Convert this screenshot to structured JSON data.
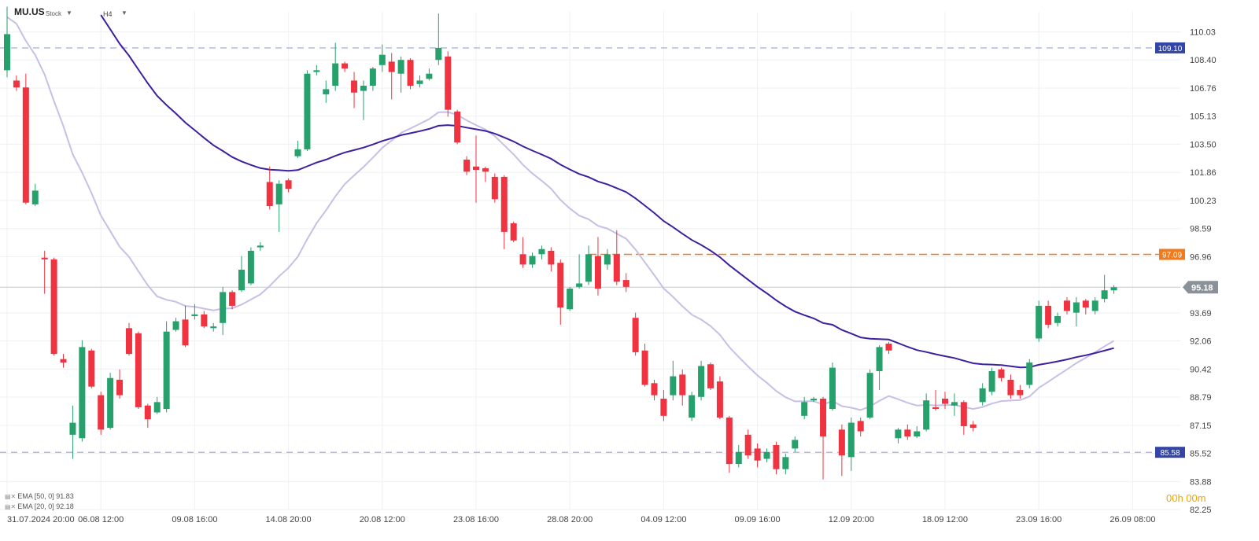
{
  "header": {
    "symbol": "MU.US",
    "type": "Stock",
    "timeframe": "H4"
  },
  "timer": "00h 00m",
  "legend": [
    {
      "label": "EMA  [50, 0]  91.83",
      "color": "#3d1fa0"
    },
    {
      "label": "EMA  [20, 0]  92.18",
      "color": "#c7bfe6"
    }
  ],
  "colors": {
    "up": "#26a16c",
    "down": "#ef3340",
    "ema50": "#3d1fa0",
    "ema20": "#c7bfe6",
    "hline": "#9aa3d6",
    "orange": "#f07a1c",
    "current": "#c8ccd0"
  },
  "chart_data": {
    "type": "candlestick",
    "ylim": [
      82.25,
      111.2
    ],
    "y_ticks": [
      110.03,
      108.4,
      106.76,
      105.13,
      103.5,
      101.86,
      100.23,
      98.59,
      96.96,
      95.18,
      93.69,
      92.06,
      90.42,
      88.79,
      87.15,
      85.52,
      83.88,
      82.25
    ],
    "x_ticks": [
      {
        "label": "31.07.2024  20:00",
        "i": 0
      },
      {
        "label": "06.08  12:00",
        "i": 10
      },
      {
        "label": "09.08  16:00",
        "i": 20
      },
      {
        "label": "14.08  20:00",
        "i": 30
      },
      {
        "label": "20.08  12:00",
        "i": 40
      },
      {
        "label": "23.08  16:00",
        "i": 50
      },
      {
        "label": "28.08  20:00",
        "i": 60
      },
      {
        "label": "04.09  12:00",
        "i": 70
      },
      {
        "label": "09.09  16:00",
        "i": 80
      },
      {
        "label": "12.09  20:00",
        "i": 90
      },
      {
        "label": "18.09  12:00",
        "i": 100
      },
      {
        "label": "23.09  16:00",
        "i": 110
      },
      {
        "label": "26.09  08:00",
        "i": 120
      }
    ],
    "levels": [
      {
        "value": 109.1,
        "label": "109.10",
        "kind": "support-resistance"
      },
      {
        "value": 85.58,
        "label": "85.58",
        "kind": "support-resistance"
      },
      {
        "value": 97.09,
        "label": "97.09",
        "kind": "orange"
      },
      {
        "value": 95.18,
        "label": "95.18",
        "kind": "current"
      }
    ],
    "candles": [
      [
        107.8,
        109.9,
        111.5,
        107.4
      ],
      [
        107.2,
        106.8,
        107.5,
        106.6
      ],
      [
        106.8,
        100.1,
        107.6,
        100.0
      ],
      [
        100.0,
        100.8,
        101.2,
        99.9
      ],
      [
        96.9,
        96.8,
        97.3,
        94.8
      ],
      [
        96.8,
        91.3,
        96.9,
        91.2
      ],
      [
        91.0,
        90.8,
        91.3,
        90.5
      ],
      [
        86.6,
        87.3,
        88.3,
        85.2
      ],
      [
        86.4,
        91.7,
        92.1,
        86.2
      ],
      [
        91.5,
        89.4,
        91.6,
        89.3
      ],
      [
        88.9,
        86.9,
        89.1,
        86.6
      ],
      [
        87.0,
        89.9,
        90.2,
        86.9
      ],
      [
        89.8,
        88.9,
        90.4,
        88.7
      ],
      [
        92.8,
        91.3,
        93.1,
        91.2
      ],
      [
        92.5,
        88.2,
        92.6,
        88.1
      ],
      [
        88.3,
        87.5,
        88.4,
        87.0
      ],
      [
        87.9,
        88.5,
        88.8,
        87.8
      ],
      [
        88.1,
        92.6,
        93.2,
        87.9
      ],
      [
        92.7,
        93.2,
        93.4,
        92.6
      ],
      [
        93.3,
        91.8,
        94.1,
        91.7
      ],
      [
        93.5,
        93.6,
        94.2,
        93.3
      ],
      [
        93.6,
        92.9,
        93.8,
        92.8
      ],
      [
        92.8,
        92.9,
        93.1,
        92.6
      ],
      [
        93.1,
        94.9,
        95.2,
        92.4
      ],
      [
        94.9,
        94.1,
        95.0,
        93.9
      ],
      [
        95.0,
        96.2,
        97.0,
        94.9
      ],
      [
        95.4,
        97.3,
        97.5,
        95.3
      ],
      [
        97.5,
        97.6,
        97.8,
        97.3
      ],
      [
        101.3,
        99.9,
        102.2,
        99.7
      ],
      [
        100.0,
        101.2,
        101.4,
        98.4
      ],
      [
        101.4,
        100.9,
        101.5,
        100.7
      ],
      [
        102.8,
        103.2,
        103.7,
        102.7
      ],
      [
        103.2,
        107.6,
        107.8,
        103.1
      ],
      [
        107.7,
        107.8,
        108.1,
        107.5
      ],
      [
        106.4,
        106.7,
        107.2,
        105.9
      ],
      [
        106.9,
        108.2,
        109.4,
        106.6
      ],
      [
        108.2,
        107.9,
        108.3,
        107.7
      ],
      [
        107.2,
        106.5,
        107.7,
        105.6
      ],
      [
        106.6,
        106.9,
        107.2,
        104.9
      ],
      [
        106.9,
        107.9,
        108.0,
        106.6
      ],
      [
        108.1,
        108.7,
        109.3,
        107.7
      ],
      [
        108.3,
        107.7,
        108.8,
        106.1
      ],
      [
        107.6,
        108.4,
        108.6,
        106.5
      ],
      [
        108.4,
        106.9,
        108.5,
        106.7
      ],
      [
        107.0,
        107.2,
        107.5,
        106.8
      ],
      [
        107.3,
        107.6,
        107.9,
        107.2
      ],
      [
        108.4,
        109.1,
        111.1,
        108.1
      ],
      [
        108.6,
        105.5,
        108.9,
        105.1
      ],
      [
        105.4,
        103.6,
        105.5,
        103.5
      ],
      [
        102.6,
        101.9,
        102.8,
        101.7
      ],
      [
        102.2,
        102.0,
        104.0,
        100.1
      ],
      [
        102.1,
        101.9,
        102.2,
        101.3
      ],
      [
        101.6,
        100.3,
        101.8,
        100.1
      ],
      [
        101.6,
        98.4,
        101.7,
        97.4
      ],
      [
        98.9,
        97.9,
        99.0,
        97.8
      ],
      [
        97.1,
        96.5,
        98.1,
        96.3
      ],
      [
        96.5,
        97.0,
        97.2,
        96.3
      ],
      [
        97.1,
        97.4,
        97.6,
        96.8
      ],
      [
        97.3,
        96.5,
        97.5,
        96.1
      ],
      [
        96.6,
        94.0,
        96.8,
        93.0
      ],
      [
        93.9,
        95.1,
        95.2,
        93.8
      ],
      [
        95.2,
        95.4,
        97.1,
        95.1
      ],
      [
        95.5,
        97.1,
        97.6,
        95.3
      ],
      [
        97.0,
        95.1,
        98.1,
        94.7
      ],
      [
        96.5,
        97.1,
        97.4,
        96.2
      ],
      [
        97.1,
        95.5,
        98.5,
        95.3
      ],
      [
        95.6,
        95.2,
        96.0,
        94.9
      ],
      [
        93.4,
        91.4,
        93.7,
        91.2
      ],
      [
        91.5,
        89.5,
        91.9,
        89.4
      ],
      [
        89.6,
        88.9,
        89.8,
        88.6
      ],
      [
        88.7,
        87.7,
        89.2,
        87.4
      ],
      [
        88.9,
        90.0,
        90.9,
        88.6
      ],
      [
        90.1,
        88.9,
        90.4,
        88.3
      ],
      [
        87.6,
        88.9,
        89.1,
        87.4
      ],
      [
        88.8,
        90.6,
        90.9,
        88.6
      ],
      [
        90.7,
        89.3,
        90.8,
        89.2
      ],
      [
        89.7,
        87.6,
        90.0,
        87.5
      ],
      [
        87.6,
        84.9,
        87.7,
        84.4
      ],
      [
        84.9,
        85.6,
        86.0,
        84.7
      ],
      [
        86.6,
        85.4,
        86.9,
        85.2
      ],
      [
        85.8,
        85.1,
        86.1,
        84.7
      ],
      [
        85.2,
        85.6,
        85.8,
        85.0
      ],
      [
        86.0,
        84.6,
        86.2,
        84.3
      ],
      [
        84.6,
        85.3,
        85.5,
        84.3
      ],
      [
        85.8,
        86.3,
        86.5,
        85.6
      ],
      [
        87.7,
        88.5,
        88.8,
        87.5
      ],
      [
        88.6,
        88.7,
        88.8,
        88.5
      ],
      [
        88.7,
        86.5,
        88.8,
        84.0
      ],
      [
        88.1,
        90.5,
        90.8,
        88.0
      ],
      [
        86.9,
        85.4,
        87.2,
        84.2
      ],
      [
        85.3,
        87.3,
        87.6,
        84.5
      ],
      [
        87.4,
        86.8,
        87.6,
        86.5
      ],
      [
        87.6,
        90.2,
        90.4,
        87.5
      ],
      [
        90.3,
        91.7,
        91.8,
        89.2
      ],
      [
        91.9,
        91.5,
        92.0,
        91.3
      ],
      [
        86.4,
        86.9,
        87.0,
        86.1
      ],
      [
        86.9,
        86.5,
        87.2,
        86.3
      ],
      [
        86.5,
        86.8,
        87.1,
        86.4
      ],
      [
        86.9,
        88.6,
        89.0,
        86.8
      ],
      [
        88.2,
        88.1,
        89.2,
        88.0
      ],
      [
        88.7,
        88.4,
        89.1,
        88.1
      ],
      [
        88.3,
        88.5,
        89.0,
        87.7
      ],
      [
        88.5,
        87.1,
        88.6,
        86.6
      ],
      [
        87.2,
        87.0,
        87.4,
        86.8
      ],
      [
        88.5,
        89.3,
        89.6,
        88.3
      ],
      [
        89.1,
        90.3,
        90.5,
        88.9
      ],
      [
        90.4,
        89.9,
        90.5,
        89.7
      ],
      [
        89.8,
        88.9,
        90.1,
        88.7
      ],
      [
        89.2,
        88.9,
        89.5,
        88.7
      ],
      [
        89.5,
        90.8,
        91.0,
        89.3
      ],
      [
        92.2,
        94.1,
        94.4,
        92.0
      ],
      [
        94.1,
        93.0,
        94.4,
        92.8
      ],
      [
        93.1,
        93.5,
        93.7,
        92.9
      ],
      [
        94.4,
        93.8,
        94.6,
        93.6
      ],
      [
        93.7,
        94.3,
        94.6,
        92.9
      ],
      [
        94.4,
        94.0,
        94.5,
        93.6
      ],
      [
        93.8,
        94.4,
        94.6,
        93.6
      ],
      [
        94.5,
        95.0,
        95.9,
        94.3
      ],
      [
        95.0,
        95.18,
        95.3,
        94.8
      ]
    ]
  }
}
